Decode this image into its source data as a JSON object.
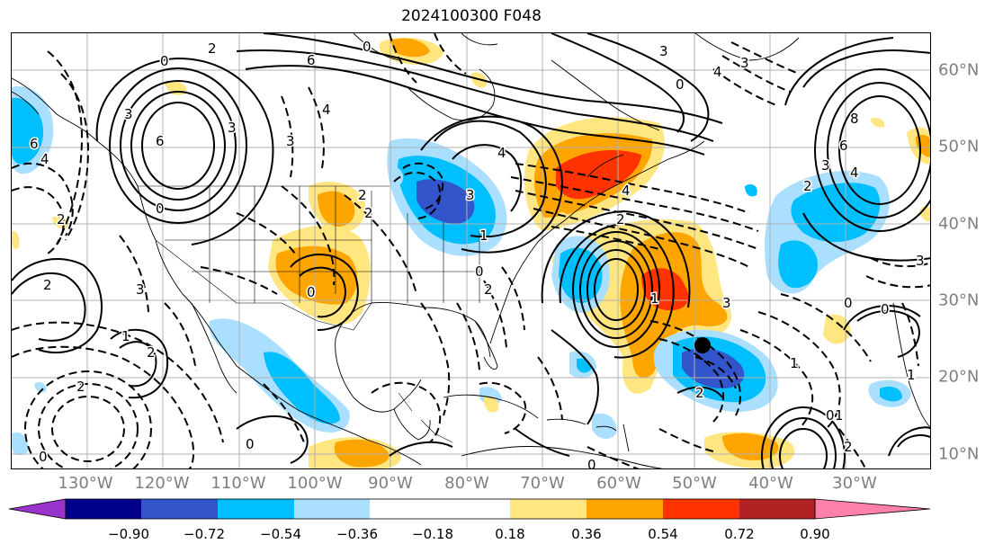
{
  "title": "2024100300 F048",
  "axes": {
    "lon_labels": [
      "130°W",
      "120°W",
      "110°W",
      "100°W",
      "90°W",
      "80°W",
      "70°W",
      "60°W",
      "50°W",
      "40°W",
      "30°W"
    ],
    "lat_labels": [
      "60°N",
      "50°N",
      "40°N",
      "30°N",
      "20°N",
      "10°N"
    ]
  },
  "colorbar": {
    "colors": [
      "#9933cc",
      "#00008b",
      "#3355cc",
      "#00bfff",
      "#aadfff",
      "#ffffff",
      "#ffe680",
      "#ffa500",
      "#ff3300",
      "#b22222",
      "#ff80aa"
    ],
    "labels": [
      "−0.90",
      "−0.72",
      "−0.54",
      "−0.36",
      "−0.18",
      "0.18",
      "0.36",
      "0.54",
      "0.72",
      "0.90"
    ]
  },
  "contour_labels": [
    "0",
    "3",
    "6",
    "3",
    "0",
    "2",
    "4",
    "4",
    "8",
    "6",
    "3",
    "4",
    "2",
    "0",
    "3",
    "4",
    "3",
    "1",
    "3",
    "2",
    "4",
    "6",
    "2",
    "3",
    "2",
    "0",
    "3",
    "4",
    "6",
    "2",
    "0",
    "2",
    "1",
    "2",
    "0",
    "0",
    "0",
    "0",
    "1",
    "1",
    "2",
    "1",
    "0",
    "3",
    "2",
    "1",
    "0",
    "2",
    "2",
    "0",
    "3"
  ],
  "marker": {
    "name": "black-dot",
    "lon": -50.2,
    "lat": 24.0
  }
}
